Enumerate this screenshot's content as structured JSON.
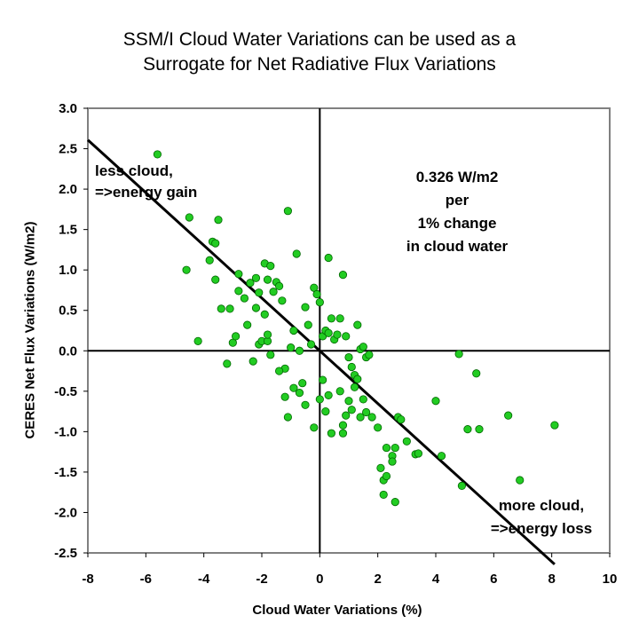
{
  "chart_data": {
    "type": "scatter",
    "title_lines": [
      "SSM/I Cloud Water Variations can be used as a",
      "Surrogate for Net Radiative Flux Variations"
    ],
    "xlabel": "Cloud Water Variations (%)",
    "ylabel": "CERES Net Flux Variations (W/m2)",
    "xlim": [
      -8,
      10
    ],
    "ylim": [
      -2.5,
      3.0
    ],
    "xticks": [
      -8,
      -6,
      -4,
      -2,
      0,
      2,
      4,
      6,
      8,
      10
    ],
    "yticks": [
      -2.5,
      -2.0,
      -1.5,
      -1.0,
      -0.5,
      0.0,
      0.5,
      1.0,
      1.5,
      2.0,
      2.5,
      3.0
    ],
    "xtick_labels": [
      "-8",
      "-6",
      "-4",
      "-2",
      "0",
      "2",
      "4",
      "6",
      "8",
      "10"
    ],
    "ytick_labels": [
      "-2.5",
      "-2.0",
      "-1.5",
      "-1.0",
      "-0.5",
      "0.0",
      "0.5",
      "1.0",
      "1.5",
      "2.0",
      "2.5",
      "3.0"
    ],
    "grid": false,
    "marker_color": "#22cc22",
    "marker_edge": "#006600",
    "regression_line": {
      "slope": -0.326,
      "intercept": 0.0,
      "color": "#000000"
    },
    "annotations": {
      "upper_left": [
        "less cloud,",
        "=>energy gain"
      ],
      "center_right": [
        "0.326 W/m2",
        "per",
        "1% change",
        "in cloud water"
      ],
      "lower_right": [
        "more cloud,",
        "=>energy loss"
      ]
    },
    "x": [
      -5.6,
      -4.6,
      -4.5,
      -3.8,
      -3.7,
      -3.6,
      -3.6,
      -3.5,
      -3.4,
      -4.2,
      -3.2,
      -3.1,
      -3.0,
      -2.9,
      -2.8,
      -2.8,
      -2.5,
      -2.4,
      -2.3,
      -2.2,
      -2.2,
      -2.1,
      -2.0,
      -1.9,
      -1.8,
      -1.7,
      -1.6,
      -1.5,
      -1.4,
      -1.3,
      -1.2,
      -1.1,
      -1.0,
      -0.9,
      -0.8,
      -0.7,
      -0.6,
      -0.5,
      -2.6,
      -2.1,
      -1.9,
      -1.8,
      -1.8,
      -1.7,
      -1.4,
      -1.2,
      -1.1,
      -0.9,
      -0.7,
      -0.5,
      -0.4,
      -0.3,
      -0.2,
      -0.1,
      0.0,
      0.1,
      0.2,
      0.3,
      0.3,
      0.4,
      0.5,
      0.6,
      0.7,
      0.8,
      0.9,
      1.0,
      1.1,
      1.2,
      1.3,
      1.4,
      1.5,
      1.6,
      1.7,
      -0.2,
      0.1,
      0.0,
      0.2,
      0.3,
      0.4,
      0.7,
      0.8,
      0.8,
      0.9,
      1.0,
      1.1,
      1.2,
      1.3,
      1.4,
      1.5,
      1.6,
      1.8,
      2.0,
      2.1,
      2.2,
      2.3,
      2.5,
      2.6,
      2.7,
      2.8,
      2.2,
      2.3,
      2.5,
      2.6,
      3.0,
      3.3,
      3.4,
      4.0,
      4.2,
      4.8,
      4.9,
      5.1,
      5.4,
      5.5,
      6.5,
      6.9,
      8.1
    ],
    "y": [
      2.43,
      1.0,
      1.65,
      1.12,
      1.35,
      0.88,
      1.33,
      1.62,
      0.52,
      0.12,
      -0.16,
      0.52,
      0.1,
      0.18,
      0.74,
      0.95,
      0.32,
      0.84,
      -0.13,
      0.53,
      0.9,
      0.08,
      0.12,
      1.08,
      0.88,
      1.05,
      0.73,
      0.85,
      0.8,
      0.62,
      -0.22,
      1.73,
      0.04,
      0.25,
      1.2,
      0.0,
      -0.4,
      0.54,
      0.65,
      0.72,
      0.45,
      0.12,
      0.2,
      -0.05,
      -0.25,
      -0.57,
      -0.82,
      -0.46,
      -0.52,
      -0.67,
      0.32,
      0.08,
      0.78,
      0.7,
      0.6,
      0.18,
      0.25,
      0.22,
      1.15,
      0.4,
      0.14,
      0.2,
      0.4,
      0.94,
      0.18,
      -0.08,
      -0.2,
      -0.3,
      0.32,
      0.02,
      0.05,
      -0.08,
      -0.05,
      -0.95,
      -0.36,
      -0.6,
      -0.75,
      -0.55,
      -1.02,
      -0.5,
      -1.02,
      -0.92,
      -0.8,
      -0.62,
      -0.73,
      -0.45,
      -0.35,
      -0.82,
      -0.6,
      -0.76,
      -0.82,
      -0.95,
      -1.45,
      -1.78,
      -1.2,
      -1.3,
      -1.2,
      -0.82,
      -0.85,
      -1.6,
      -1.55,
      -1.37,
      -1.87,
      -1.12,
      -1.28,
      -1.27,
      -0.62,
      -1.3,
      -0.04,
      -1.67,
      -0.97,
      -0.28,
      -0.97,
      -0.8,
      -1.6,
      -0.92
    ]
  }
}
